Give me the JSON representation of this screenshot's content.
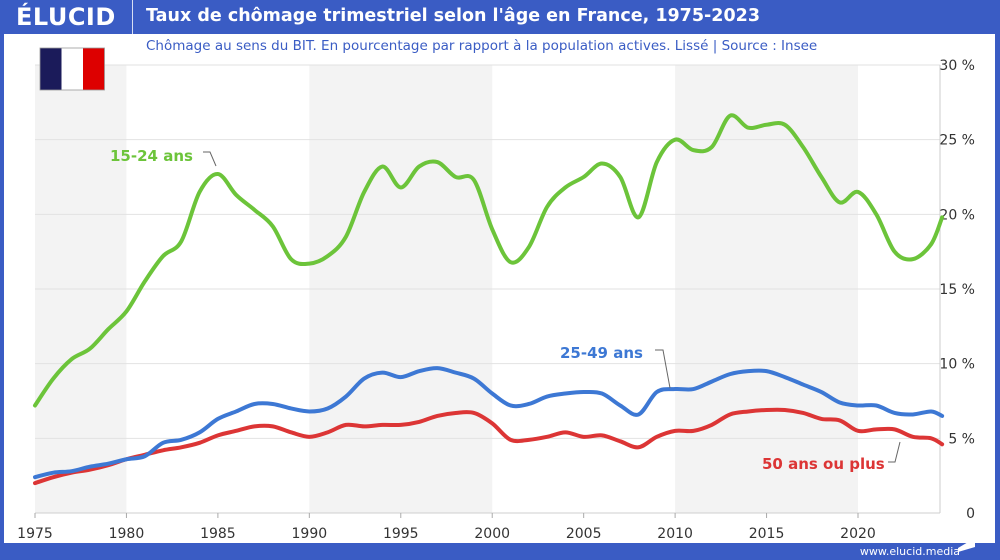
{
  "header": {
    "logo": "ÉLUCID",
    "title": "Taux de chômage trimestriel selon l'âge en France, 1975-2023",
    "subtitle": "Chômage au sens du BIT. En pourcentage par rapport à la population actives. Lissé  |  Source : Insee",
    "footer": "www.elucid.media"
  },
  "colors": {
    "brand": "#3a5cc4",
    "flag": [
      "#1b1b5a",
      "#ffffff",
      "#dd0000"
    ]
  },
  "chart_data": {
    "type": "line",
    "title": "Taux de chômage trimestriel selon l'âge en France, 1975-2023",
    "xlim": [
      1975,
      2025
    ],
    "ylim": [
      0,
      30
    ],
    "x_ticks": [
      "1975",
      "1980",
      "1985",
      "1990",
      "1995",
      "2000",
      "2005",
      "2010",
      "2015",
      "2020"
    ],
    "y_ticks": [
      "0",
      "5 %",
      "10 %",
      "15 %",
      "20 %",
      "25 %",
      "30 %"
    ],
    "y_axis_side": "right",
    "grid": true,
    "x": [
      1975,
      1976,
      1977,
      1978,
      1979,
      1980,
      1981,
      1982,
      1983,
      1984,
      1985,
      1986,
      1987,
      1988,
      1989,
      1990,
      1991,
      1992,
      1993,
      1994,
      1995,
      1996,
      1997,
      1998,
      1999,
      2000,
      2001,
      2002,
      2003,
      2004,
      2005,
      2006,
      2007,
      2008,
      2009,
      2010,
      2011,
      2012,
      2013,
      2014,
      2015,
      2016,
      2017,
      2018,
      2019,
      2020,
      2021,
      2022,
      2023,
      2024,
      2024.6
    ],
    "series": [
      {
        "name": "15-24 ans",
        "color": "#6cc43a",
        "values": [
          7.2,
          9,
          10.3,
          11,
          12.3,
          13.5,
          15.5,
          17.2,
          18.2,
          21.5,
          22.7,
          21.3,
          20.3,
          19.2,
          17,
          16.7,
          17.2,
          18.5,
          21.5,
          23.2,
          21.8,
          23.2,
          23.5,
          22.5,
          22.3,
          19,
          16.8,
          17.8,
          20.5,
          21.8,
          22.5,
          23.4,
          22.5,
          19.8,
          23.5,
          25,
          24.3,
          24.5,
          26.6,
          25.8,
          26,
          26,
          24.5,
          22.5,
          20.8,
          21.5,
          20,
          17.5,
          17,
          18,
          19.8
        ]
      },
      {
        "name": "25-49 ans",
        "color": "#3d78d4",
        "values": [
          2.4,
          2.7,
          2.8,
          3.1,
          3.3,
          3.6,
          3.8,
          4.7,
          4.9,
          5.4,
          6.3,
          6.8,
          7.3,
          7.3,
          7,
          6.8,
          7,
          7.8,
          9,
          9.4,
          9.1,
          9.5,
          9.7,
          9.4,
          9,
          8,
          7.2,
          7.3,
          7.8,
          8,
          8.1,
          8,
          7.2,
          6.6,
          8.1,
          8.3,
          8.3,
          8.8,
          9.3,
          9.5,
          9.5,
          9.1,
          8.6,
          8.1,
          7.4,
          7.2,
          7.2,
          6.7,
          6.6,
          6.8,
          6.5
        ]
      },
      {
        "name": "50 ans ou plus",
        "color": "#dc3535",
        "values": [
          2,
          2.4,
          2.7,
          2.9,
          3.2,
          3.6,
          3.9,
          4.2,
          4.4,
          4.7,
          5.2,
          5.5,
          5.8,
          5.8,
          5.4,
          5.1,
          5.4,
          5.9,
          5.8,
          5.9,
          5.9,
          6.1,
          6.5,
          6.7,
          6.7,
          6,
          4.9,
          4.9,
          5.1,
          5.4,
          5.1,
          5.2,
          4.8,
          4.4,
          5.1,
          5.5,
          5.5,
          5.9,
          6.6,
          6.8,
          6.9,
          6.9,
          6.7,
          6.3,
          6.2,
          5.5,
          5.6,
          5.6,
          5.1,
          5,
          4.6
        ]
      }
    ]
  }
}
